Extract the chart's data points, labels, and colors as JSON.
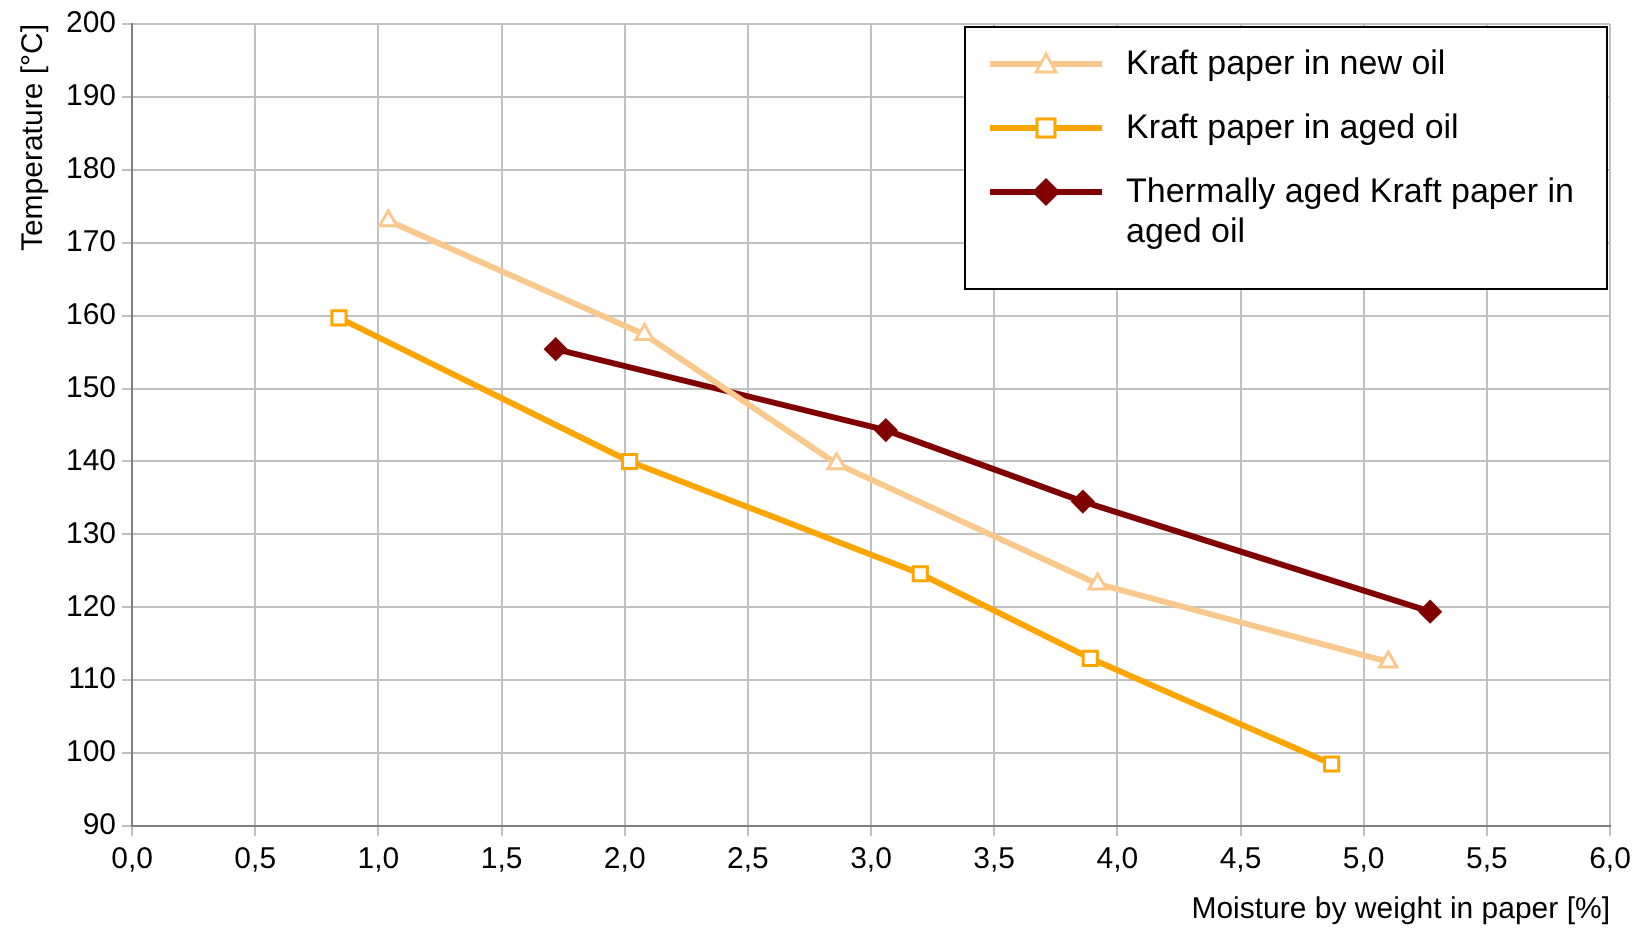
{
  "chart_data": {
    "type": "line",
    "xlabel": "Moisture by weight in paper [%]",
    "ylabel": "Temperature [°C]",
    "xlim": [
      0,
      6
    ],
    "xticks": [
      {
        "value": 0,
        "label": "0,0"
      },
      {
        "value": 0.5,
        "label": "0,5"
      },
      {
        "value": 1,
        "label": "1,0"
      },
      {
        "value": 1.5,
        "label": "1,5"
      },
      {
        "value": 2,
        "label": "2,0"
      },
      {
        "value": 2.5,
        "label": "2,5"
      },
      {
        "value": 3,
        "label": "3,0"
      },
      {
        "value": 3.5,
        "label": "3,5"
      },
      {
        "value": 4,
        "label": "4,0"
      },
      {
        "value": 4.5,
        "label": "4,5"
      },
      {
        "value": 5,
        "label": "5,0"
      },
      {
        "value": 5.5,
        "label": "5,5"
      },
      {
        "value": 6,
        "label": "6,0"
      }
    ],
    "ylim": [
      90,
      200
    ],
    "yticks": [
      90,
      100,
      110,
      120,
      130,
      140,
      150,
      160,
      170,
      180,
      190,
      200
    ],
    "grid": true,
    "legend": "top right",
    "series": [
      {
        "name": "Kraft paper in new oil",
        "color": "#fac88c",
        "marker": "triangle",
        "x": [
          1.04,
          2.08,
          2.86,
          3.92,
          5.1
        ],
        "values": [
          173,
          157.4,
          139.7,
          123.2,
          112.5
        ]
      },
      {
        "name": "Kraft paper in aged oil",
        "color": "#ffa500",
        "marker": "square",
        "x": [
          0.84,
          2.02,
          3.2,
          3.89,
          4.87
        ],
        "values": [
          159.7,
          140,
          124.6,
          113,
          98.5
        ]
      },
      {
        "name": "Thermally aged Kraft paper in aged oil",
        "color": "#800000",
        "marker": "diamond",
        "x": [
          1.72,
          3.06,
          3.86,
          5.27
        ],
        "values": [
          155.4,
          144.3,
          134.5,
          119.4
        ]
      }
    ]
  }
}
